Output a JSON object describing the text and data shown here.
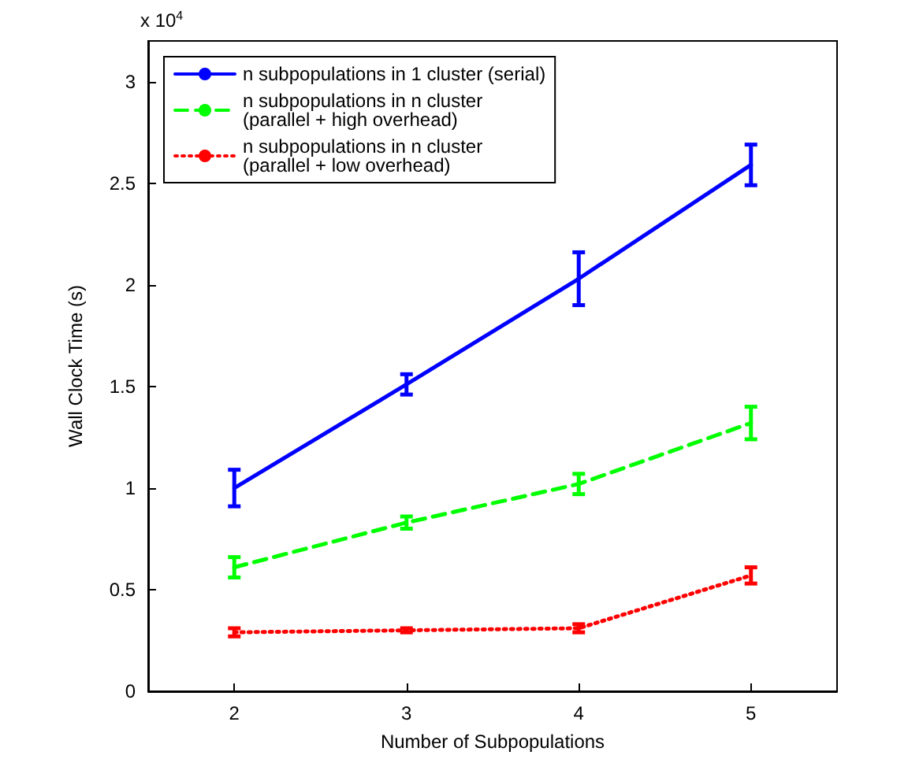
{
  "chart_data": {
    "type": "line",
    "xlabel": "Number of Subpopulations",
    "ylabel": "Wall Clock Time (s)",
    "annotations": [
      "x 10$^{4}$"
    ],
    "x": [
      2,
      3,
      4,
      5
    ],
    "xlim": [
      1.5,
      5.5
    ],
    "xticks": [
      2,
      3,
      4,
      5
    ],
    "ylim": [
      0,
      3.2
    ],
    "yticks": [
      0,
      0.5,
      1,
      1.5,
      2,
      2.5,
      3
    ],
    "grid": false,
    "legend": "top left",
    "marker": "none",
    "series": [
      {
        "name": "n subpopulations in 1 cluster (serial)",
        "color": "#0000ff",
        "line_style": "solid",
        "values": [
          1.0,
          1.51,
          2.03,
          2.59
        ],
        "errors": [
          0.09,
          0.05,
          0.13,
          0.1
        ]
      },
      {
        "name": "n subpopulations in n cluster\n(parallel + high overhead)",
        "color": "#00ff00",
        "line_style": "dashed",
        "values": [
          0.61,
          0.83,
          1.02,
          1.32
        ],
        "errors": [
          0.05,
          0.03,
          0.05,
          0.08
        ]
      },
      {
        "name": "n subpopulations in n cluster\n(parallel + low overhead)",
        "color": "#ff0000",
        "line_style": "dotted",
        "values": [
          0.29,
          0.3,
          0.31,
          0.57
        ],
        "errors": [
          0.02,
          0.01,
          0.02,
          0.04
        ]
      }
    ]
  }
}
